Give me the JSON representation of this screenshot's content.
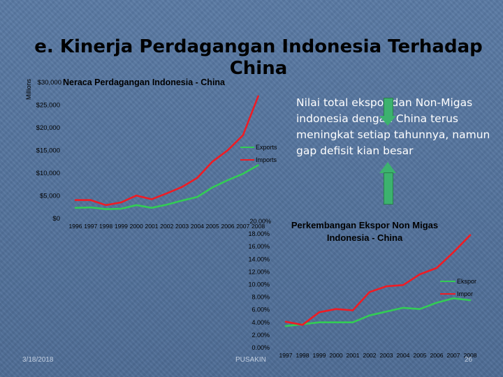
{
  "slide": {
    "title": "e. Kinerja Perdagangan Indonesia Terhadap China",
    "side_text": "Nilai total  ekspor dan Non-Migas indonesia dengan China terus meningkat setiap tahunnya, namun gap defisit kian besar",
    "footer_date": "3/18/2018",
    "footer_center": "PUSAKIN",
    "footer_page": "26",
    "colors": {
      "exports": "#33cc55",
      "imports": "#ee1c24"
    }
  },
  "chart_data": [
    {
      "type": "line",
      "title": "Neraca Perdagangan Indonesia - China",
      "ylabel": "Millions",
      "categories": [
        "1996",
        "1997",
        "1998",
        "1999",
        "2000",
        "2001",
        "2002",
        "2003",
        "2004",
        "2005",
        "2006",
        "2007",
        "2008"
      ],
      "yticks": [
        "$0",
        "$5,000",
        "$10,000",
        "$15,000",
        "$20,000",
        "$25,000",
        "$30,000"
      ],
      "ylim": [
        0,
        30000
      ],
      "series": [
        {
          "name": "Exports",
          "color": "#33cc55",
          "values": [
            2200,
            2300,
            1900,
            2000,
            2800,
            2200,
            2900,
            3800,
            4600,
            6700,
            8300,
            9700,
            11600
          ]
        },
        {
          "name": "Imports",
          "color": "#ee1c24",
          "values": [
            3900,
            3900,
            2800,
            3400,
            4900,
            4100,
            5400,
            6800,
            8800,
            12400,
            14900,
            18200,
            26800
          ]
        }
      ],
      "legend_position": "right"
    },
    {
      "type": "line",
      "title": "Perkembangan Ekspor Non Migas Indonesia - China",
      "categories": [
        "1997",
        "1998",
        "1999",
        "2000",
        "2001",
        "2002",
        "2003",
        "2004",
        "2005",
        "2006",
        "2007",
        "2008"
      ],
      "yticks": [
        "0.00%",
        "2.00%",
        "4.00%",
        "6.00%",
        "8.00%",
        "10.00%",
        "12.00%",
        "14.00%",
        "16.00%",
        "18.00%",
        "20.00%"
      ],
      "ylim": [
        0,
        20
      ],
      "series": [
        {
          "name": "Ekspor",
          "color": "#33cc55",
          "values": [
            3.3,
            3.6,
            3.9,
            3.9,
            3.9,
            5.0,
            5.6,
            6.2,
            6.0,
            7.0,
            7.7,
            7.4
          ]
        },
        {
          "name": "Impor",
          "color": "#ee1c24",
          "values": [
            4.0,
            3.5,
            5.5,
            6.0,
            5.8,
            8.7,
            9.6,
            9.8,
            11.5,
            12.5,
            15.0,
            17.7
          ]
        }
      ],
      "legend_position": "right"
    }
  ]
}
